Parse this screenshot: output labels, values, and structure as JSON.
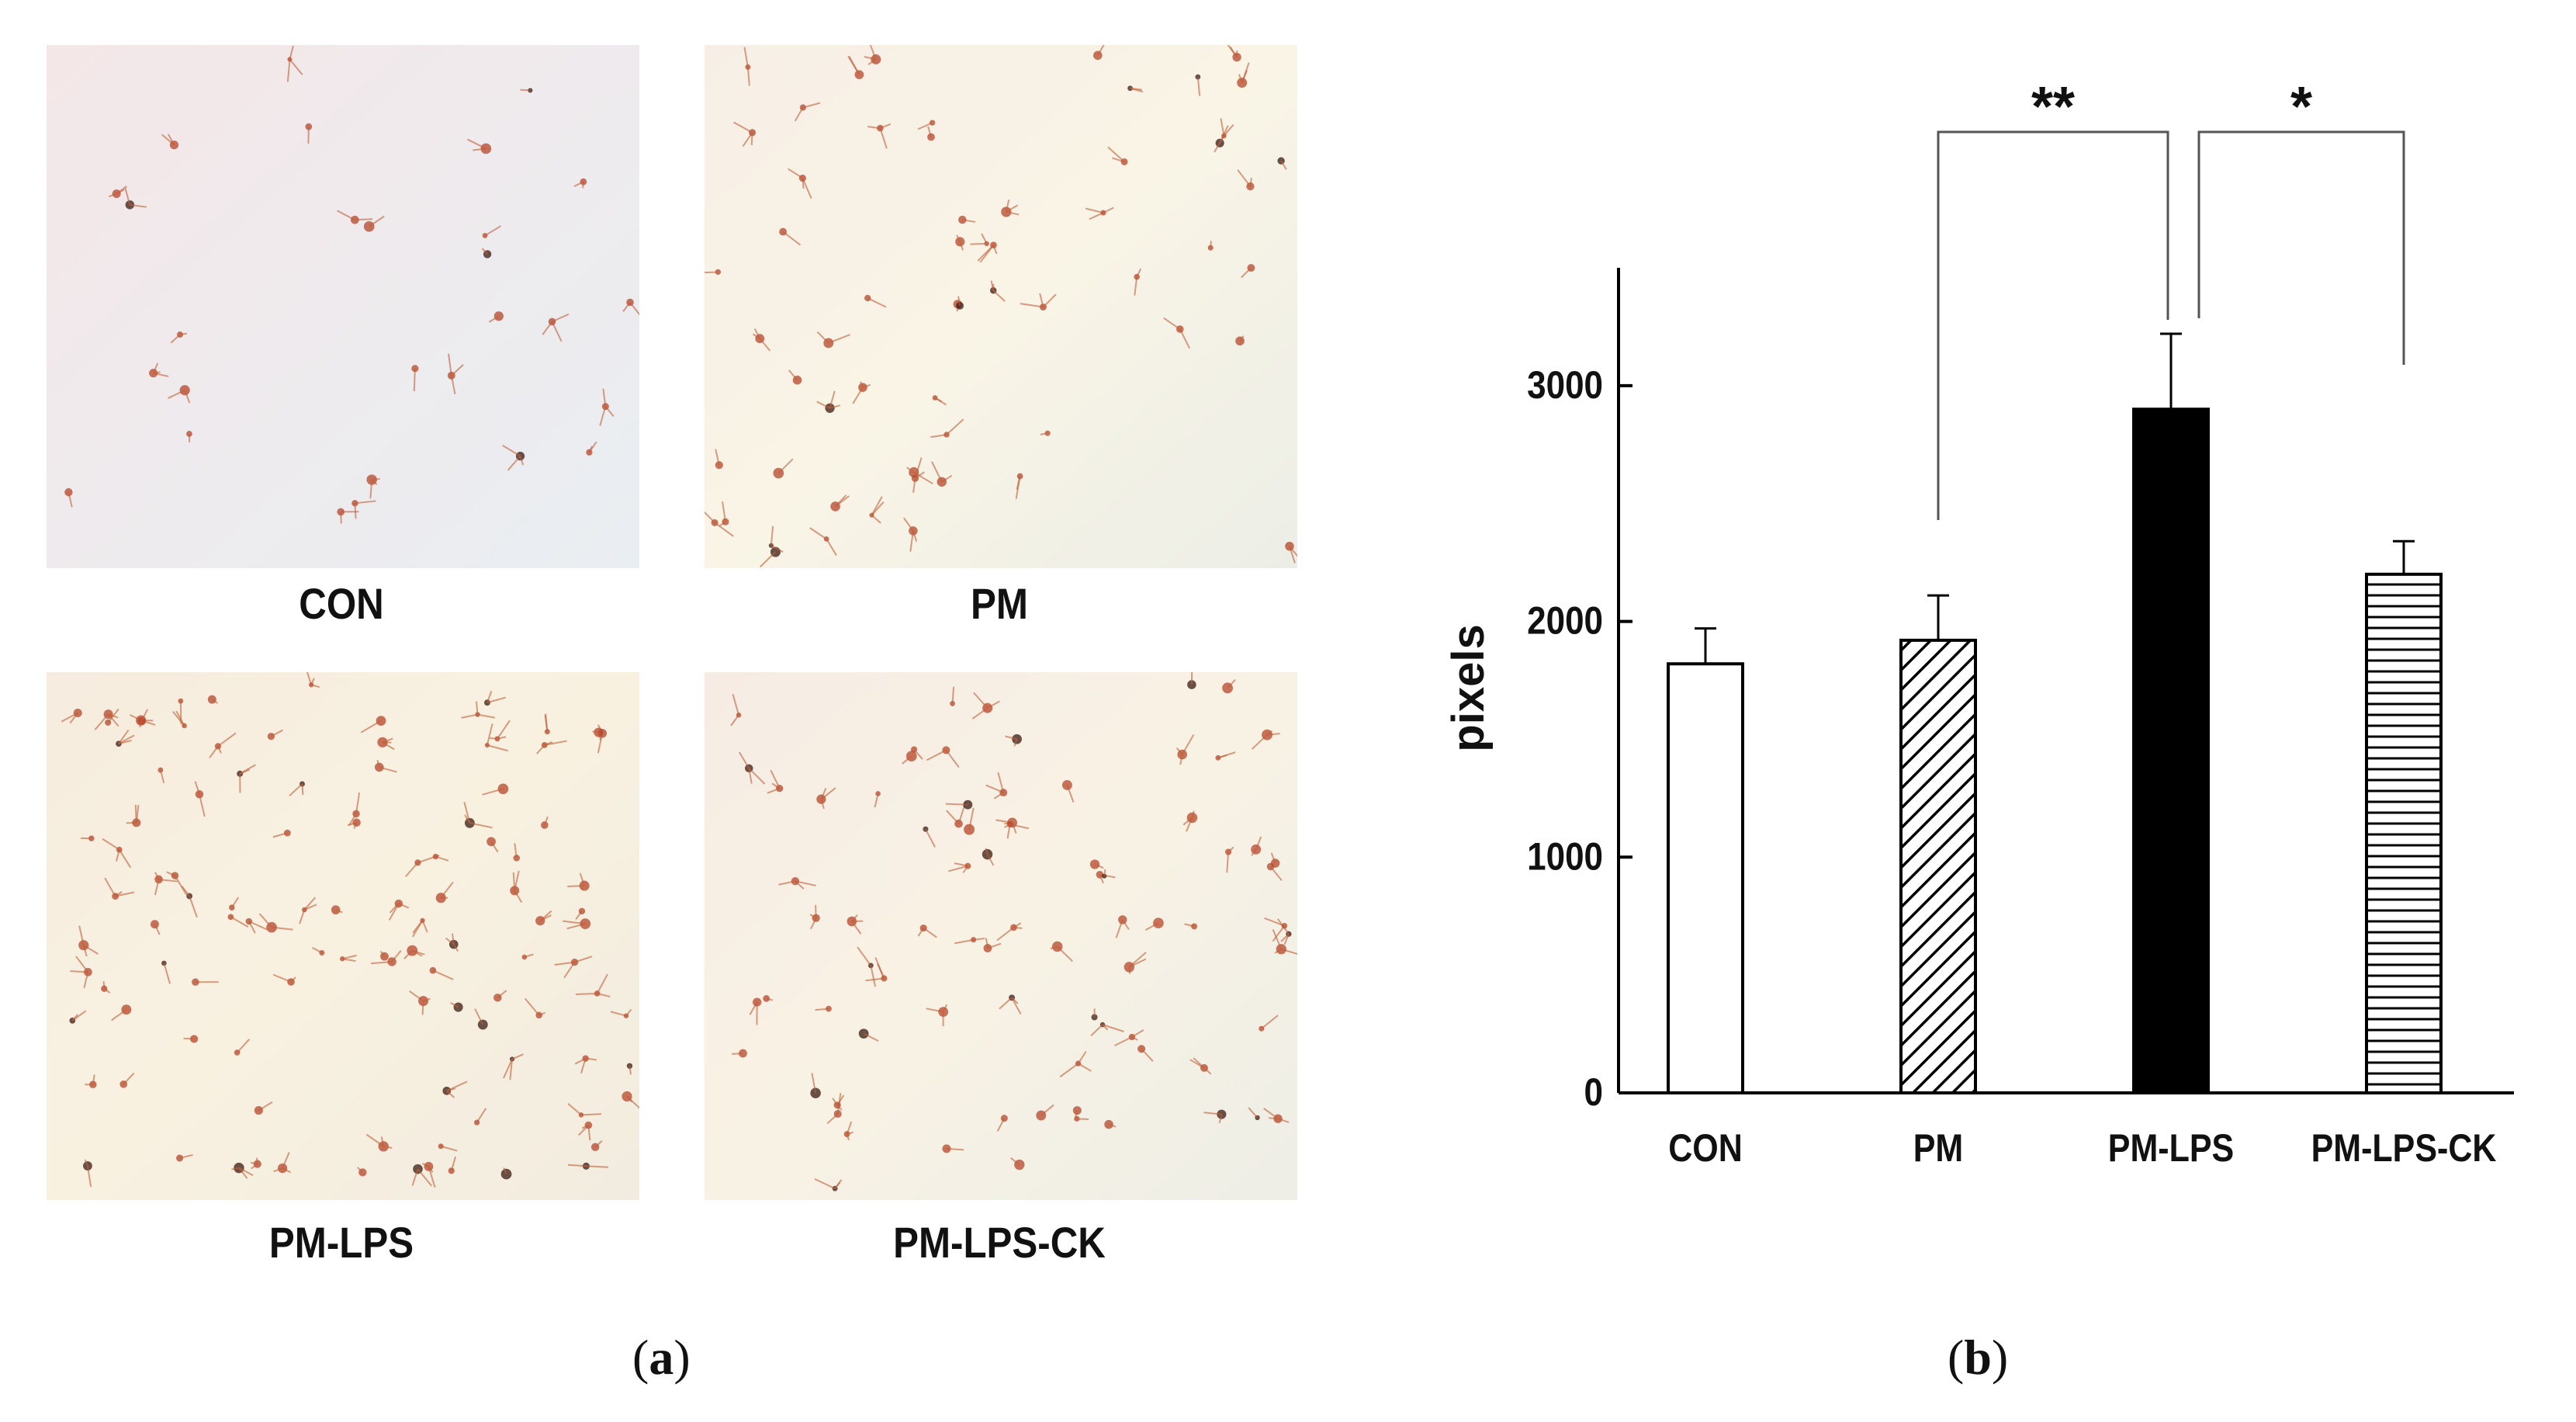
{
  "panel_a": {
    "letter": "a",
    "images": [
      {
        "label": "CON"
      },
      {
        "label": "PM"
      },
      {
        "label": "PM-LPS"
      },
      {
        "label": "PM-LPS-CK"
      }
    ]
  },
  "panel_b": {
    "letter": "b"
  },
  "chart_data": {
    "type": "bar",
    "categories": [
      "CON",
      "PM",
      "PM-LPS",
      "PM-LPS-CK"
    ],
    "values": [
      1820,
      1920,
      2900,
      2200
    ],
    "errors": [
      150,
      190,
      320,
      140
    ],
    "fills": [
      "none",
      "diagonal-hatch",
      "solid-black",
      "horizontal-hatch"
    ],
    "title": "",
    "xlabel": "",
    "ylabel": "pixels",
    "ylim": [
      0,
      3500
    ],
    "yticks": [
      0,
      1000,
      2000,
      3000
    ],
    "grid": false,
    "significance": [
      {
        "from": "PM",
        "to": "PM-LPS",
        "label": "**"
      },
      {
        "from": "PM-LPS",
        "to": "PM-LPS-CK",
        "label": "*"
      }
    ]
  }
}
